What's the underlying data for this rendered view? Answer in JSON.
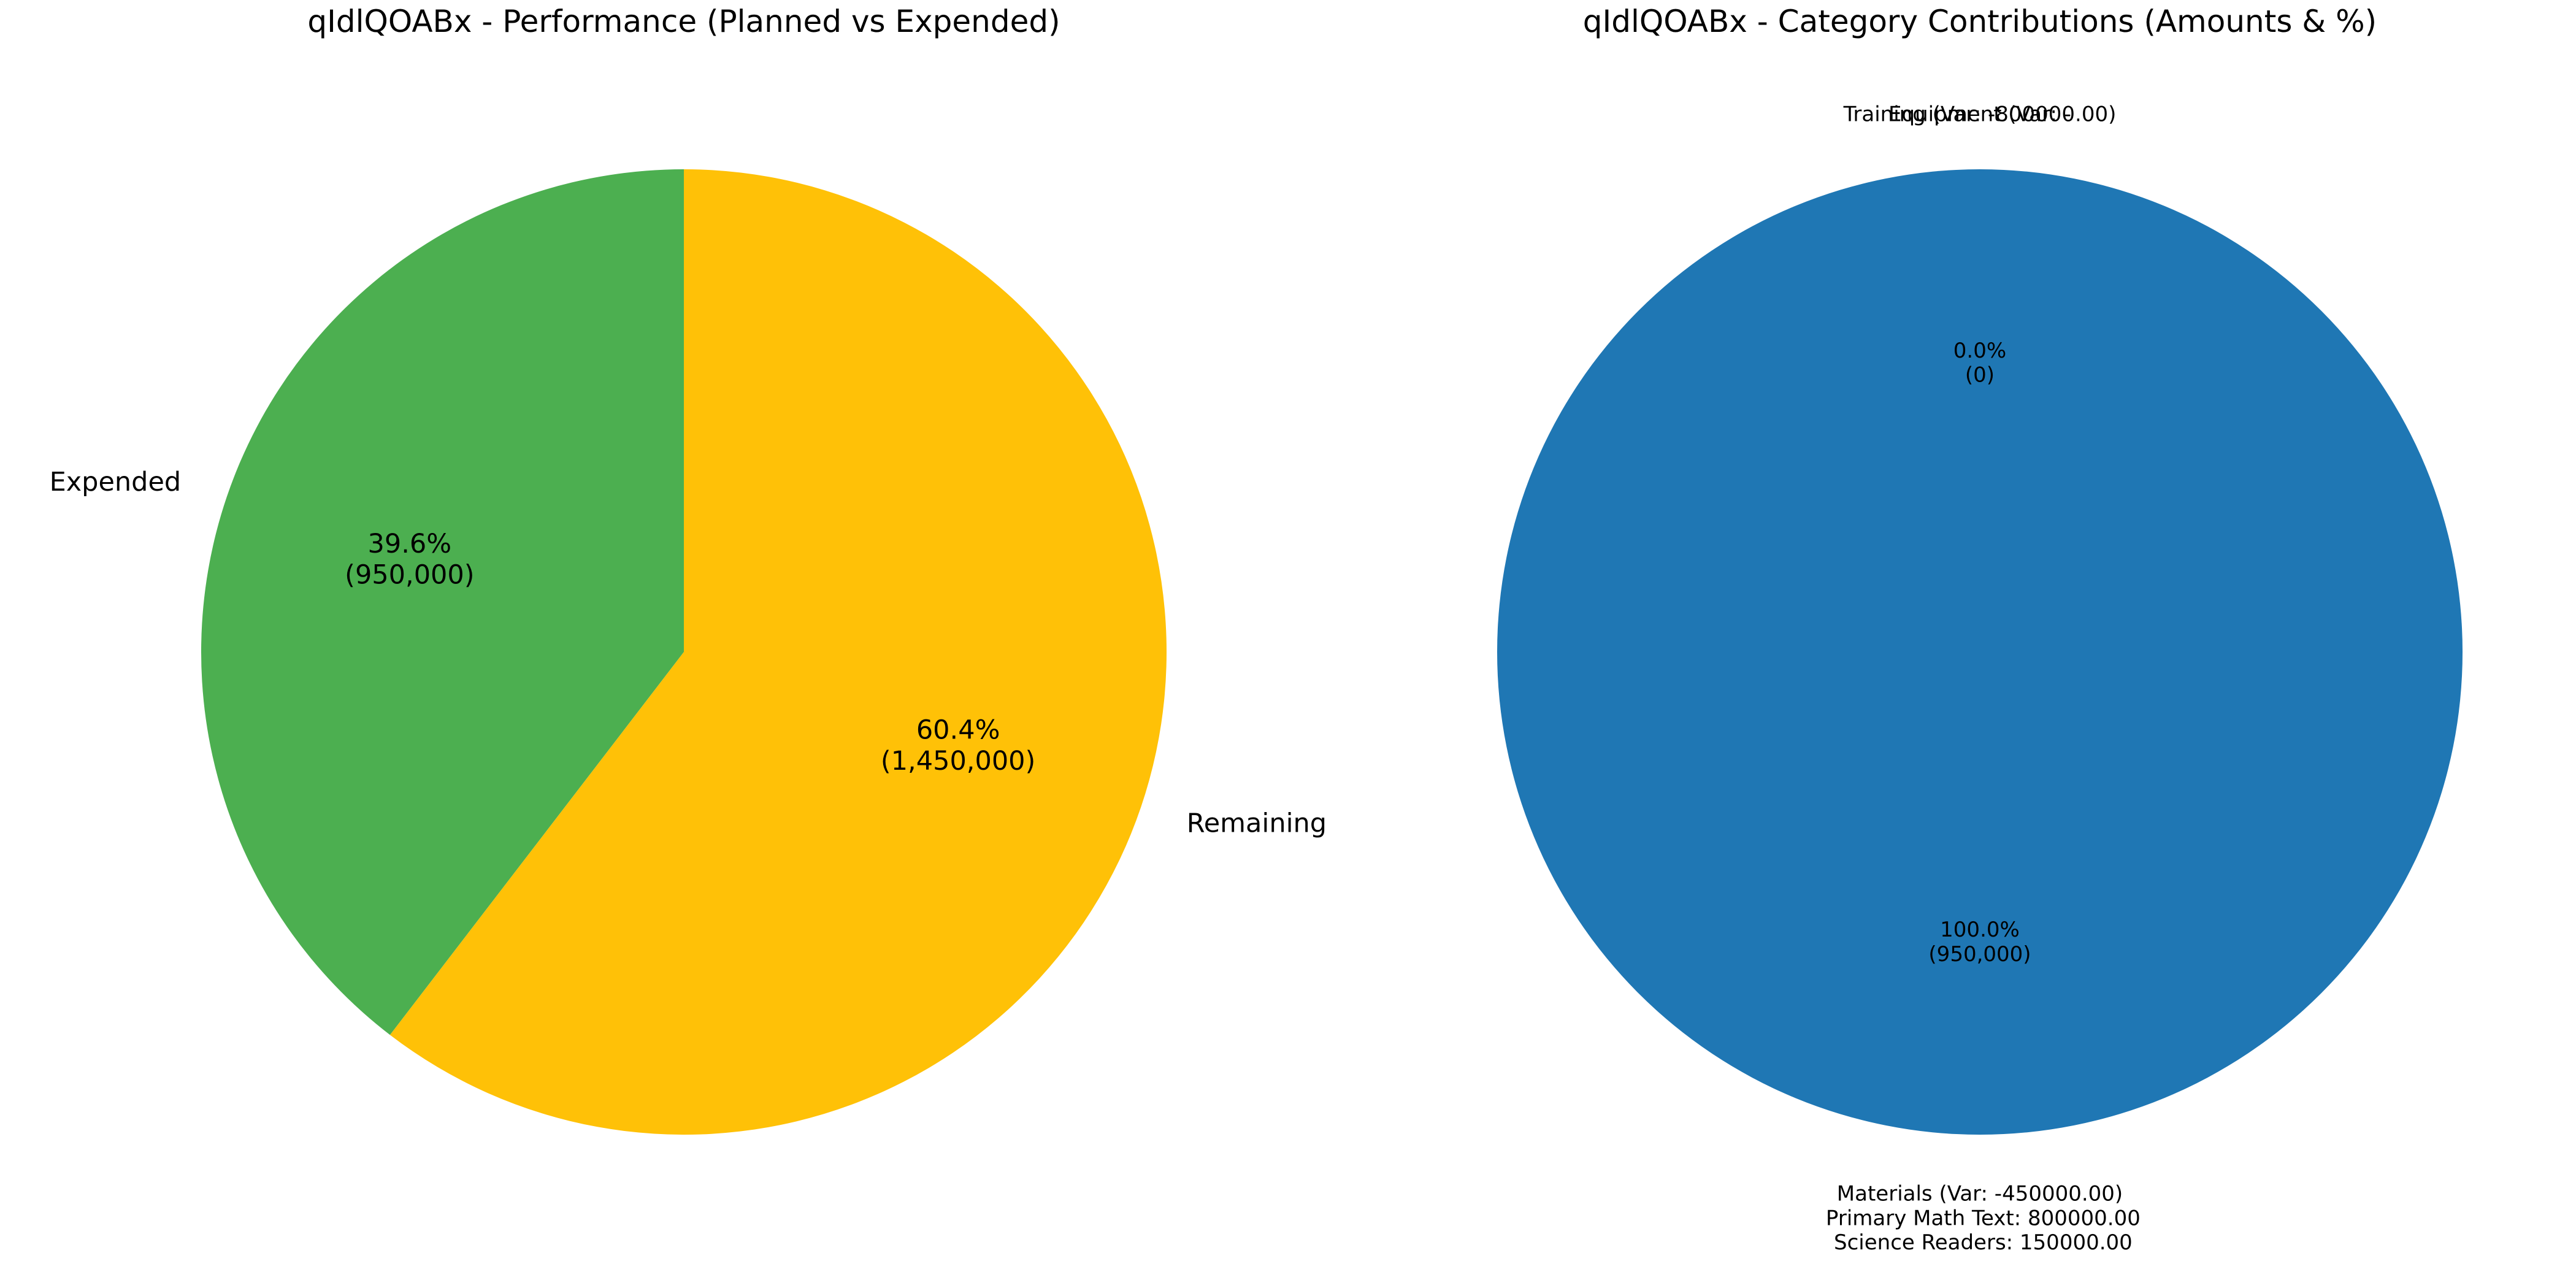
{
  "chart_data": [
    {
      "type": "pie",
      "title": "qIdlQOABx - Performance (Planned vs Expended)",
      "categories": [
        "Expended",
        "Remaining"
      ],
      "values": [
        950000,
        1450000
      ],
      "slice_labels": [
        "Expended",
        "Remaining"
      ],
      "autopct_labels": [
        "39.6%\n(950,000)",
        "60.4%\n(1,450,000)"
      ],
      "colors": [
        "#4caf50",
        "#ffc107"
      ],
      "start_angle_deg": 90,
      "direction": "counterclockwise"
    },
    {
      "type": "pie",
      "title": "qIdlQOABx - Category Contributions (Amounts & %)",
      "categories": [
        "Equipment",
        "Training",
        "Materials"
      ],
      "values": [
        0,
        0,
        950000
      ],
      "slice_labels": [
        "Equipment (Var: -",
        "Training (Var: -800000.00)",
        "Materials (Var: -450000.00)\n  Primary Math Text: 800000.00\n  Science Readers: 150000.00"
      ],
      "autopct_labels": [
        "0.0%\n(0)",
        "",
        "100.0%\n(950,000)"
      ],
      "colors": [
        "#1f77b4",
        "#ff7f0e",
        "#1f77b4"
      ],
      "start_angle_deg": 90,
      "direction": "counterclockwise"
    }
  ]
}
